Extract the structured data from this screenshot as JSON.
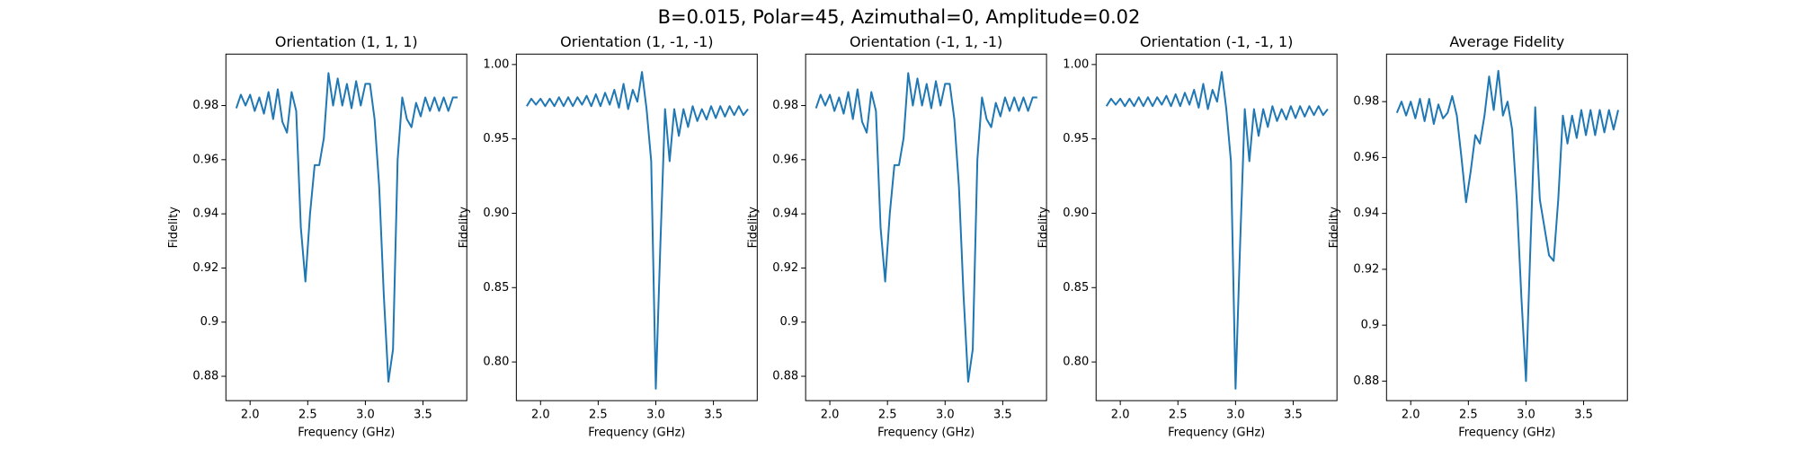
{
  "suptitle": "B=0.015, Polar=45, Azimuthal=0, Amplitude=0.02",
  "chart_data": [
    {
      "type": "line",
      "title": "Orientation (1, 1, 1)",
      "xlabel": "Frequency (GHz)",
      "ylabel": "Fidelity",
      "xlim": [
        1.79,
        3.88
      ],
      "ylim": [
        0.871,
        0.999
      ],
      "xticks": [
        {
          "value": 2,
          "label": "2.0"
        },
        2.5,
        {
          "value": 3,
          "label": "3.0"
        },
        3.5
      ],
      "yticks": [
        0.88,
        0.9,
        0.92,
        0.94,
        0.96,
        0.98
      ],
      "x": [
        1.88,
        1.92,
        1.96,
        2.0,
        2.04,
        2.08,
        2.12,
        2.16,
        2.2,
        2.24,
        2.28,
        2.32,
        2.36,
        2.4,
        2.44,
        2.48,
        2.52,
        2.56,
        2.6,
        2.64,
        2.68,
        2.72,
        2.76,
        2.8,
        2.84,
        2.88,
        2.92,
        2.96,
        3.0,
        3.04,
        3.08,
        3.12,
        3.16,
        3.2,
        3.24,
        3.28,
        3.32,
        3.36,
        3.4,
        3.44,
        3.48,
        3.52,
        3.56,
        3.6,
        3.64,
        3.68,
        3.72,
        3.76,
        3.8
      ],
      "series": [
        {
          "name": "Fidelity",
          "color": "#1f77b4",
          "values": [
            0.979,
            0.984,
            0.98,
            0.984,
            0.978,
            0.983,
            0.977,
            0.985,
            0.975,
            0.986,
            0.974,
            0.97,
            0.985,
            0.978,
            0.935,
            0.915,
            0.94,
            0.958,
            0.958,
            0.968,
            0.992,
            0.98,
            0.99,
            0.98,
            0.988,
            0.979,
            0.989,
            0.98,
            0.988,
            0.988,
            0.975,
            0.95,
            0.91,
            0.878,
            0.89,
            0.96,
            0.983,
            0.975,
            0.972,
            0.981,
            0.976,
            0.983,
            0.978,
            0.983,
            0.978,
            0.983,
            0.978,
            0.983,
            0.983
          ]
        }
      ]
    },
    {
      "type": "line",
      "title": "Orientation (1, -1, -1)",
      "xlabel": "Frequency (GHz)",
      "ylabel": "Fidelity",
      "xlim": [
        1.79,
        3.88
      ],
      "ylim": [
        0.774,
        1.007
      ],
      "xticks": [
        {
          "value": 2,
          "label": "2.0"
        },
        2.5,
        {
          "value": 3,
          "label": "3.0"
        },
        3.5
      ],
      "yticks": [
        {
          "value": 0.8,
          "label": "0.80"
        },
        0.85,
        {
          "value": 0.9,
          "label": "0.90"
        },
        0.95,
        {
          "value": 1,
          "label": "1.00"
        }
      ],
      "x": [
        1.88,
        1.92,
        1.96,
        2.0,
        2.04,
        2.08,
        2.12,
        2.16,
        2.2,
        2.24,
        2.28,
        2.32,
        2.36,
        2.4,
        2.44,
        2.48,
        2.52,
        2.56,
        2.6,
        2.64,
        2.68,
        2.72,
        2.76,
        2.8,
        2.84,
        2.88,
        2.92,
        2.96,
        3.0,
        3.04,
        3.08,
        3.12,
        3.16,
        3.2,
        3.24,
        3.28,
        3.32,
        3.36,
        3.4,
        3.44,
        3.48,
        3.52,
        3.56,
        3.6,
        3.64,
        3.68,
        3.72,
        3.76,
        3.8
      ],
      "series": [
        {
          "name": "Fidelity",
          "color": "#1f77b4",
          "values": [
            0.972,
            0.977,
            0.973,
            0.977,
            0.972,
            0.977,
            0.972,
            0.978,
            0.972,
            0.978,
            0.972,
            0.978,
            0.973,
            0.979,
            0.972,
            0.98,
            0.972,
            0.981,
            0.973,
            0.983,
            0.971,
            0.987,
            0.97,
            0.983,
            0.975,
            0.995,
            0.97,
            0.935,
            0.782,
            0.88,
            0.97,
            0.935,
            0.97,
            0.952,
            0.97,
            0.958,
            0.972,
            0.962,
            0.97,
            0.963,
            0.972,
            0.964,
            0.972,
            0.965,
            0.972,
            0.966,
            0.972,
            0.966,
            0.97
          ]
        }
      ]
    },
    {
      "type": "line",
      "title": "Orientation (-1, 1, -1)",
      "xlabel": "Frequency (GHz)",
      "ylabel": "Fidelity",
      "xlim": [
        1.79,
        3.88
      ],
      "ylim": [
        0.871,
        0.999
      ],
      "xticks": [
        {
          "value": 2,
          "label": "2.0"
        },
        2.5,
        {
          "value": 3,
          "label": "3.0"
        },
        3.5
      ],
      "yticks": [
        0.88,
        0.9,
        0.92,
        0.94,
        0.96,
        0.98
      ],
      "x": [
        1.88,
        1.92,
        1.96,
        2.0,
        2.04,
        2.08,
        2.12,
        2.16,
        2.2,
        2.24,
        2.28,
        2.32,
        2.36,
        2.4,
        2.44,
        2.48,
        2.52,
        2.56,
        2.6,
        2.64,
        2.68,
        2.72,
        2.76,
        2.8,
        2.84,
        2.88,
        2.92,
        2.96,
        3.0,
        3.04,
        3.08,
        3.12,
        3.16,
        3.2,
        3.24,
        3.28,
        3.32,
        3.36,
        3.4,
        3.44,
        3.48,
        3.52,
        3.56,
        3.6,
        3.64,
        3.68,
        3.72,
        3.76,
        3.8
      ],
      "series": [
        {
          "name": "Fidelity",
          "color": "#1f77b4",
          "values": [
            0.979,
            0.984,
            0.98,
            0.984,
            0.978,
            0.983,
            0.977,
            0.985,
            0.975,
            0.986,
            0.974,
            0.97,
            0.985,
            0.978,
            0.935,
            0.915,
            0.94,
            0.958,
            0.958,
            0.968,
            0.992,
            0.98,
            0.99,
            0.98,
            0.988,
            0.979,
            0.989,
            0.98,
            0.988,
            0.988,
            0.975,
            0.95,
            0.91,
            0.878,
            0.89,
            0.96,
            0.983,
            0.975,
            0.972,
            0.981,
            0.976,
            0.983,
            0.978,
            0.983,
            0.978,
            0.983,
            0.978,
            0.983,
            0.983
          ]
        }
      ]
    },
    {
      "type": "line",
      "title": "Orientation (-1, -1, 1)",
      "xlabel": "Frequency (GHz)",
      "ylabel": "Fidelity",
      "xlim": [
        1.79,
        3.88
      ],
      "ylim": [
        0.774,
        1.007
      ],
      "xticks": [
        {
          "value": 2,
          "label": "2.0"
        },
        2.5,
        {
          "value": 3,
          "label": "3.0"
        },
        3.5
      ],
      "yticks": [
        {
          "value": 0.8,
          "label": "0.80"
        },
        0.85,
        {
          "value": 0.9,
          "label": "0.90"
        },
        0.95,
        {
          "value": 1,
          "label": "1.00"
        }
      ],
      "x": [
        1.88,
        1.92,
        1.96,
        2.0,
        2.04,
        2.08,
        2.12,
        2.16,
        2.2,
        2.24,
        2.28,
        2.32,
        2.36,
        2.4,
        2.44,
        2.48,
        2.52,
        2.56,
        2.6,
        2.64,
        2.68,
        2.72,
        2.76,
        2.8,
        2.84,
        2.88,
        2.92,
        2.96,
        3.0,
        3.04,
        3.08,
        3.12,
        3.16,
        3.2,
        3.24,
        3.28,
        3.32,
        3.36,
        3.4,
        3.44,
        3.48,
        3.52,
        3.56,
        3.6,
        3.64,
        3.68,
        3.72,
        3.76,
        3.8
      ],
      "series": [
        {
          "name": "Fidelity",
          "color": "#1f77b4",
          "values": [
            0.972,
            0.977,
            0.973,
            0.977,
            0.972,
            0.977,
            0.972,
            0.978,
            0.972,
            0.978,
            0.972,
            0.978,
            0.973,
            0.979,
            0.972,
            0.98,
            0.972,
            0.981,
            0.973,
            0.983,
            0.971,
            0.987,
            0.97,
            0.983,
            0.975,
            0.995,
            0.97,
            0.935,
            0.782,
            0.88,
            0.97,
            0.935,
            0.97,
            0.952,
            0.97,
            0.958,
            0.972,
            0.962,
            0.97,
            0.963,
            0.972,
            0.964,
            0.972,
            0.965,
            0.972,
            0.966,
            0.972,
            0.966,
            0.97
          ]
        }
      ]
    },
    {
      "type": "line",
      "title": "Average Fidelity",
      "xlabel": "Frequency (GHz)",
      "ylabel": "Fidelity",
      "xlim": [
        1.79,
        3.88
      ],
      "ylim": [
        0.873,
        0.997
      ],
      "xticks": [
        {
          "value": 2,
          "label": "2.0"
        },
        2.5,
        {
          "value": 3,
          "label": "3.0"
        },
        3.5
      ],
      "yticks": [
        0.88,
        0.9,
        0.92,
        0.94,
        0.96,
        0.98
      ],
      "x": [
        1.88,
        1.92,
        1.96,
        2.0,
        2.04,
        2.08,
        2.12,
        2.16,
        2.2,
        2.24,
        2.28,
        2.32,
        2.36,
        2.4,
        2.44,
        2.48,
        2.52,
        2.56,
        2.6,
        2.64,
        2.68,
        2.72,
        2.76,
        2.8,
        2.84,
        2.88,
        2.92,
        2.96,
        3.0,
        3.04,
        3.08,
        3.12,
        3.16,
        3.2,
        3.24,
        3.28,
        3.32,
        3.36,
        3.4,
        3.44,
        3.48,
        3.52,
        3.56,
        3.6,
        3.64,
        3.68,
        3.72,
        3.76,
        3.8
      ],
      "series": [
        {
          "name": "Fidelity",
          "color": "#1f77b4",
          "values": [
            0.976,
            0.98,
            0.975,
            0.98,
            0.974,
            0.981,
            0.973,
            0.981,
            0.972,
            0.979,
            0.974,
            0.976,
            0.982,
            0.975,
            0.96,
            0.944,
            0.955,
            0.968,
            0.965,
            0.975,
            0.989,
            0.977,
            0.991,
            0.975,
            0.98,
            0.97,
            0.945,
            0.91,
            0.88,
            0.93,
            0.978,
            0.945,
            0.935,
            0.925,
            0.923,
            0.945,
            0.975,
            0.965,
            0.975,
            0.967,
            0.977,
            0.968,
            0.977,
            0.968,
            0.977,
            0.969,
            0.977,
            0.97,
            0.977
          ]
        }
      ]
    }
  ]
}
